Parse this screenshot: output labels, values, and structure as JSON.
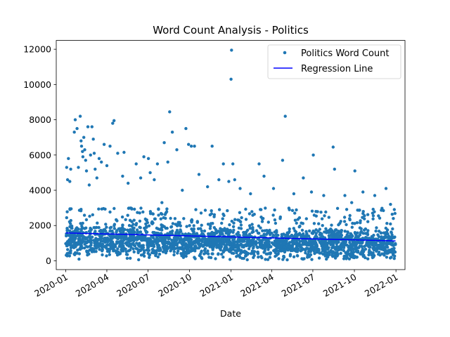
{
  "chart_data": {
    "type": "scatter",
    "title": "Word Count Analysis - Politics",
    "xlabel": "Date",
    "ylabel": "",
    "xlim": [
      "2019-12-11",
      "2022-01-21"
    ],
    "ylim": [
      -500,
      12500
    ],
    "x_ticks": [
      "2020-01",
      "2020-04",
      "2020-07",
      "2020-10",
      "2021-01",
      "2021-04",
      "2021-07",
      "2021-10",
      "2022-01"
    ],
    "y_ticks": [
      0,
      2000,
      4000,
      6000,
      8000,
      10000,
      12000
    ],
    "grid": false,
    "legend": {
      "placement": "top-right",
      "entries": [
        "Politics Word Count",
        "Regression Line"
      ]
    },
    "colors": {
      "points": "#1f77b4",
      "regression": "#0000ff"
    },
    "series": [
      {
        "name": "Politics Word Count",
        "kind": "points",
        "date_range": [
          "2020-01-01",
          "2021-12-31"
        ],
        "bulk_band": [
          300,
          2100
        ],
        "outliers": [
          {
            "x": "2020-01-03",
            "y": 5300
          },
          {
            "x": "2020-01-05",
            "y": 4600
          },
          {
            "x": "2020-01-07",
            "y": 5800
          },
          {
            "x": "2020-01-10",
            "y": 4500
          },
          {
            "x": "2020-01-12",
            "y": 5200
          },
          {
            "x": "2020-01-20",
            "y": 7300
          },
          {
            "x": "2020-01-22",
            "y": 8000
          },
          {
            "x": "2020-01-26",
            "y": 7500
          },
          {
            "x": "2020-01-29",
            "y": 5300
          },
          {
            "x": "2020-02-02",
            "y": 8200
          },
          {
            "x": "2020-02-04",
            "y": 6800
          },
          {
            "x": "2020-02-05",
            "y": 6500
          },
          {
            "x": "2020-02-07",
            "y": 6200
          },
          {
            "x": "2020-02-08",
            "y": 5900
          },
          {
            "x": "2020-02-10",
            "y": 7000
          },
          {
            "x": "2020-02-12",
            "y": 6300
          },
          {
            "x": "2020-02-14",
            "y": 5700
          },
          {
            "x": "2020-02-16",
            "y": 5100
          },
          {
            "x": "2020-02-19",
            "y": 7600
          },
          {
            "x": "2020-02-22",
            "y": 4300
          },
          {
            "x": "2020-02-25",
            "y": 6000
          },
          {
            "x": "2020-02-28",
            "y": 7600
          },
          {
            "x": "2020-03-02",
            "y": 6900
          },
          {
            "x": "2020-03-04",
            "y": 6100
          },
          {
            "x": "2020-03-06",
            "y": 5200
          },
          {
            "x": "2020-03-10",
            "y": 4700
          },
          {
            "x": "2020-03-15",
            "y": 5800
          },
          {
            "x": "2020-03-20",
            "y": 5600
          },
          {
            "x": "2020-03-26",
            "y": 6600
          },
          {
            "x": "2020-04-01",
            "y": 5400
          },
          {
            "x": "2020-04-08",
            "y": 6500
          },
          {
            "x": "2020-04-14",
            "y": 7800
          },
          {
            "x": "2020-04-17",
            "y": 7950
          },
          {
            "x": "2020-04-25",
            "y": 6100
          },
          {
            "x": "2020-05-06",
            "y": 4800
          },
          {
            "x": "2020-05-09",
            "y": 6150
          },
          {
            "x": "2020-05-18",
            "y": 4400
          },
          {
            "x": "2020-06-05",
            "y": 5500
          },
          {
            "x": "2020-06-15",
            "y": 4700
          },
          {
            "x": "2020-06-22",
            "y": 5900
          },
          {
            "x": "2020-07-02",
            "y": 5800
          },
          {
            "x": "2020-07-06",
            "y": 5000
          },
          {
            "x": "2020-07-15",
            "y": 4600
          },
          {
            "x": "2020-07-22",
            "y": 5500
          },
          {
            "x": "2020-08-01",
            "y": 3300
          },
          {
            "x": "2020-08-06",
            "y": 6700
          },
          {
            "x": "2020-08-14",
            "y": 5600
          },
          {
            "x": "2020-08-18",
            "y": 8450
          },
          {
            "x": "2020-08-24",
            "y": 7300
          },
          {
            "x": "2020-09-03",
            "y": 6300
          },
          {
            "x": "2020-09-15",
            "y": 4000
          },
          {
            "x": "2020-09-23",
            "y": 7500
          },
          {
            "x": "2020-09-29",
            "y": 6600
          },
          {
            "x": "2020-10-05",
            "y": 6500
          },
          {
            "x": "2020-10-12",
            "y": 6500
          },
          {
            "x": "2020-10-22",
            "y": 4900
          },
          {
            "x": "2020-11-10",
            "y": 4200
          },
          {
            "x": "2020-11-20",
            "y": 6500
          },
          {
            "x": "2020-12-05",
            "y": 4600
          },
          {
            "x": "2020-12-15",
            "y": 5500
          },
          {
            "x": "2020-12-27",
            "y": 4500
          },
          {
            "x": "2021-01-01",
            "y": 10300
          },
          {
            "x": "2021-01-02",
            "y": 11950
          },
          {
            "x": "2021-01-05",
            "y": 5500
          },
          {
            "x": "2021-01-09",
            "y": 4600
          },
          {
            "x": "2021-01-21",
            "y": 4100
          },
          {
            "x": "2021-02-13",
            "y": 3800
          },
          {
            "x": "2021-03-04",
            "y": 5500
          },
          {
            "x": "2021-03-15",
            "y": 4800
          },
          {
            "x": "2021-04-05",
            "y": 4100
          },
          {
            "x": "2021-04-25",
            "y": 5700
          },
          {
            "x": "2021-05-01",
            "y": 8200
          },
          {
            "x": "2021-05-20",
            "y": 3800
          },
          {
            "x": "2021-06-10",
            "y": 4700
          },
          {
            "x": "2021-06-28",
            "y": 3900
          },
          {
            "x": "2021-07-02",
            "y": 6000
          },
          {
            "x": "2021-07-25",
            "y": 3700
          },
          {
            "x": "2021-08-15",
            "y": 6450
          },
          {
            "x": "2021-08-18",
            "y": 5200
          },
          {
            "x": "2021-09-10",
            "y": 3700
          },
          {
            "x": "2021-09-25",
            "y": 3300
          },
          {
            "x": "2021-10-02",
            "y": 5100
          },
          {
            "x": "2021-10-20",
            "y": 3900
          },
          {
            "x": "2021-11-15",
            "y": 3700
          },
          {
            "x": "2021-12-10",
            "y": 4100
          },
          {
            "x": "2021-12-20",
            "y": 3200
          }
        ]
      },
      {
        "name": "Regression Line",
        "kind": "line",
        "x": [
          "2020-01-01",
          "2021-12-31"
        ],
        "y": [
          1580,
          1130
        ]
      }
    ]
  }
}
